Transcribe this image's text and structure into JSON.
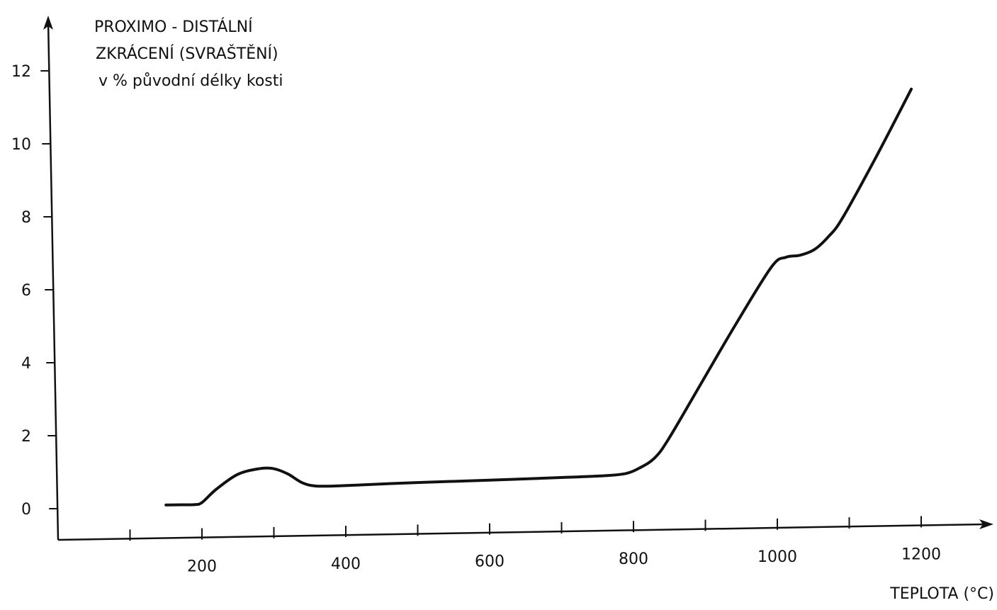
{
  "chart_data": {
    "type": "line",
    "ylabel_lines": [
      "PROXIMO - DISTÁLNÍ",
      "ZKRÁCENÍ (SVRAŠTĚNÍ)",
      "v % původní délky kosti"
    ],
    "xlabel": "TEPLOTA (°C)",
    "xlim": [
      0,
      1200
    ],
    "ylim": [
      0,
      12
    ],
    "x_ticks": [
      100,
      200,
      300,
      400,
      500,
      600,
      700,
      800,
      900,
      1000,
      1100,
      1200
    ],
    "x_tick_labels": [
      "200",
      "400",
      "600",
      "800",
      "1000",
      "1200"
    ],
    "x_tick_label_values": [
      200,
      400,
      600,
      800,
      1000,
      1200
    ],
    "y_ticks": [
      0,
      2,
      4,
      6,
      8,
      10,
      12
    ],
    "y_tick_labels": [
      "0",
      "2",
      "4",
      "6",
      "8",
      "10",
      "12"
    ],
    "series": [
      {
        "x": [
          150,
          170,
          190,
          200,
          220,
          250,
          280,
          300,
          320,
          340,
          360,
          400,
          500,
          600,
          700,
          760,
          790,
          810,
          830,
          850,
          900,
          950,
          1000,
          1020,
          1040,
          1060,
          1080,
          1100,
          1150,
          1200
        ],
        "y": [
          0.05,
          0.05,
          0.05,
          0.1,
          0.45,
          0.85,
          1.0,
          1.0,
          0.85,
          0.6,
          0.5,
          0.5,
          0.55,
          0.58,
          0.62,
          0.65,
          0.7,
          0.85,
          1.1,
          1.6,
          3.2,
          4.8,
          6.3,
          6.55,
          6.6,
          6.75,
          7.1,
          7.6,
          9.3,
          11.1
        ]
      }
    ]
  }
}
